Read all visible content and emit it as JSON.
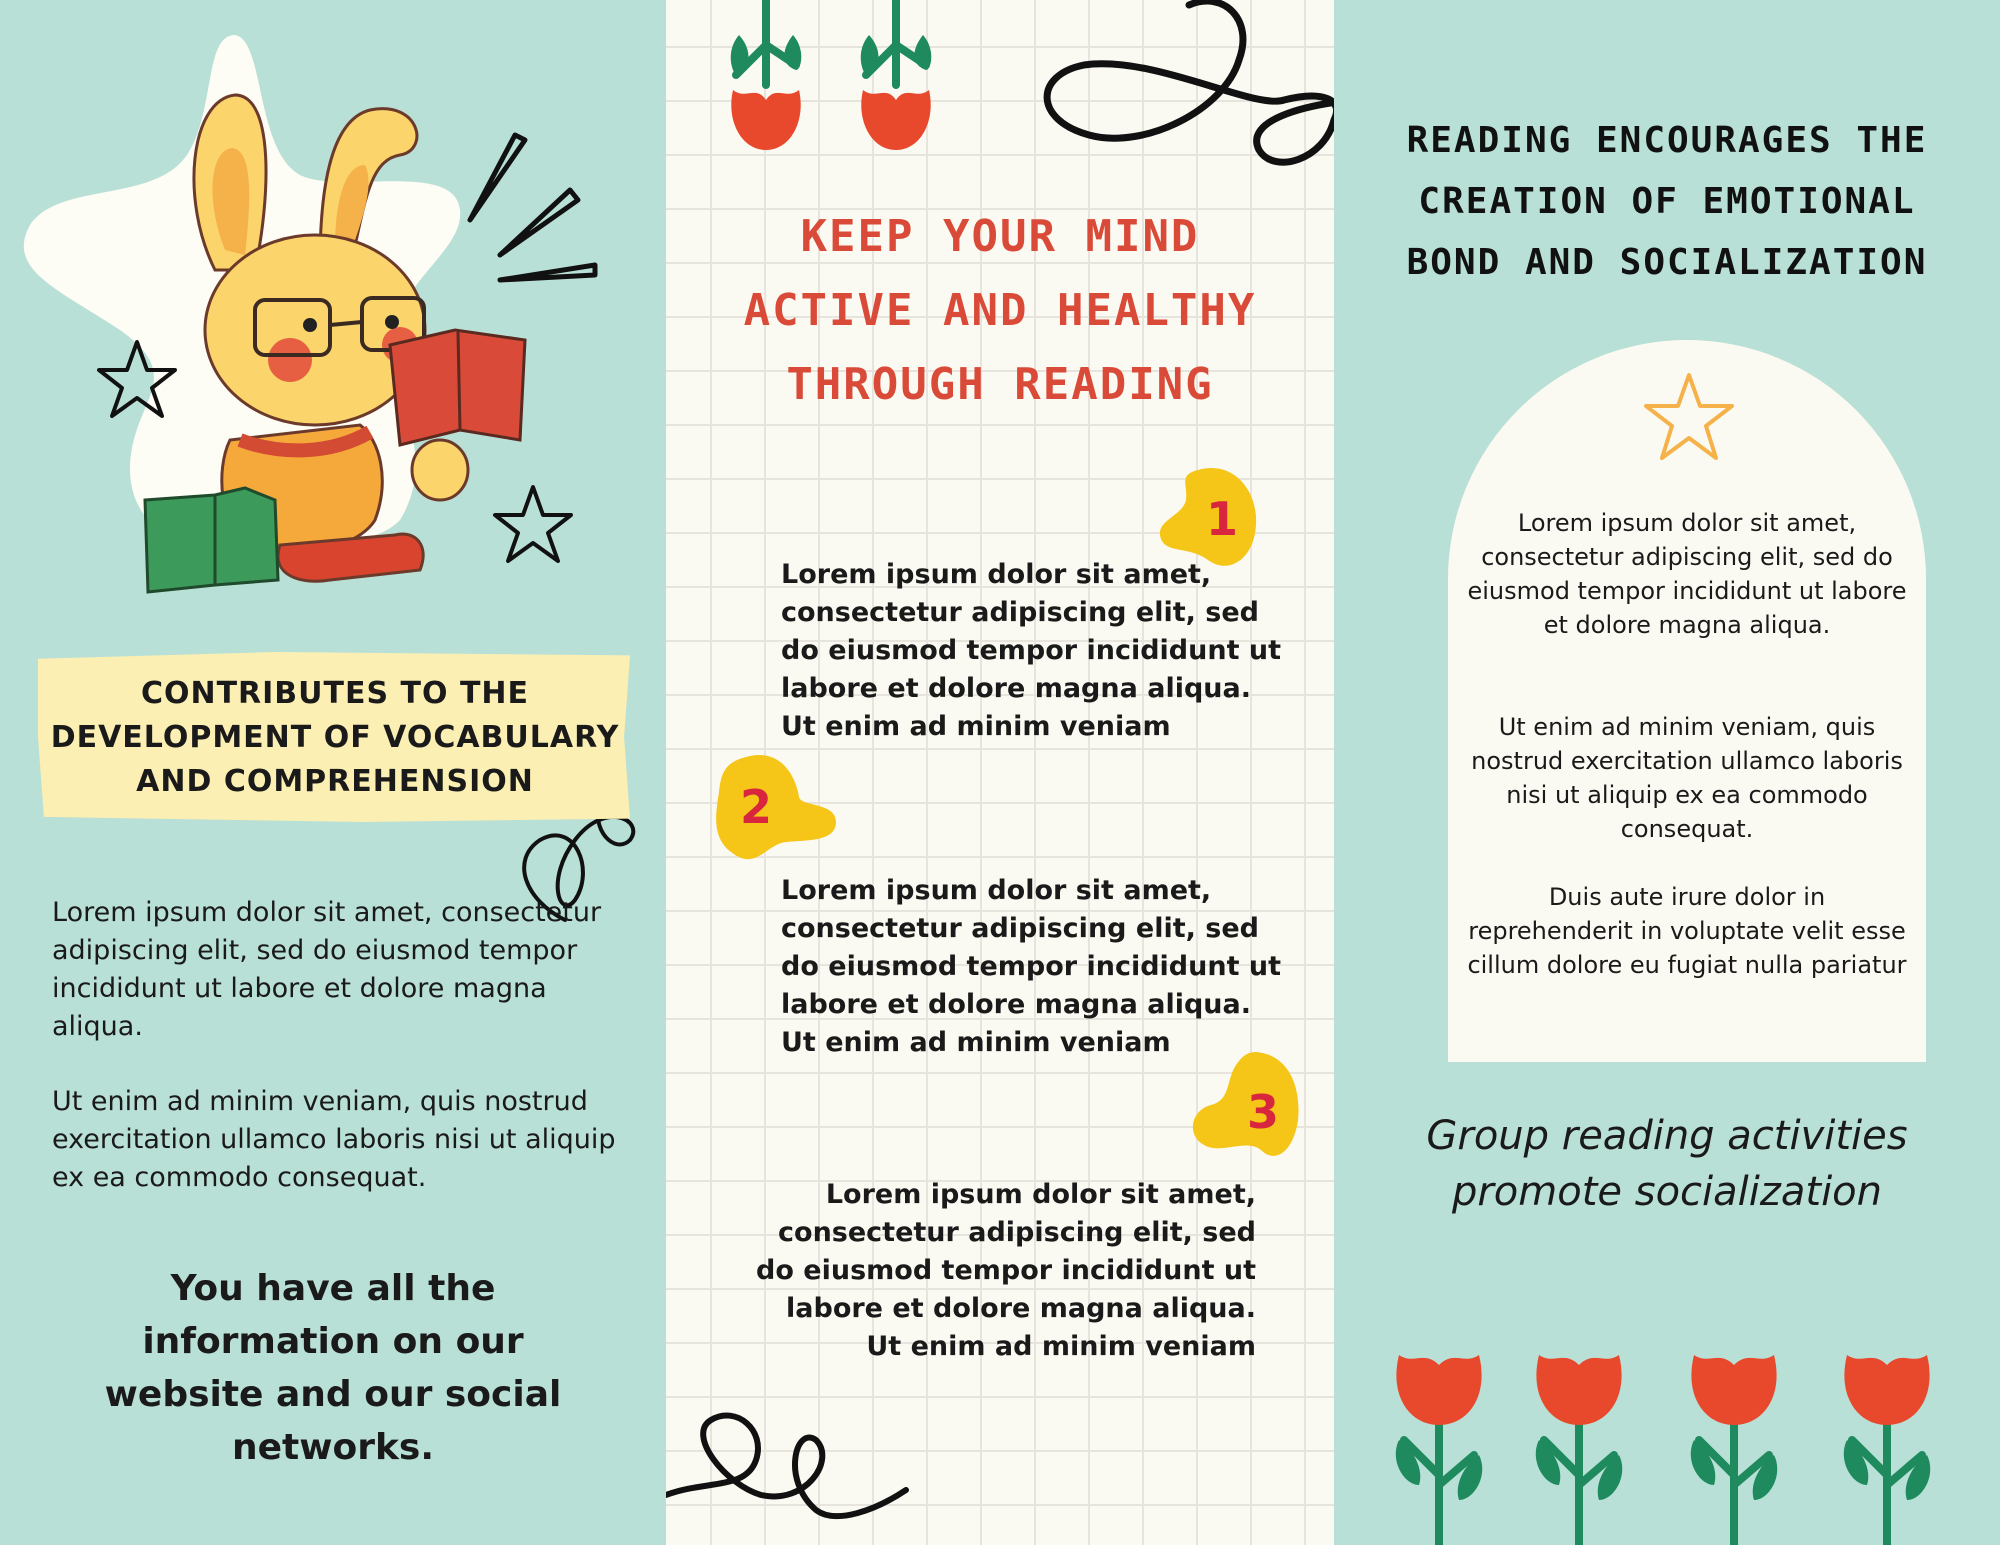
{
  "left_panel": {
    "heading": "CONTRIBUTES TO THE DEVELOPMENT OF VOCABULARY AND COMPREHENSION",
    "paragraph_1": "Lorem ipsum dolor sit amet, consectetur adipiscing elit, sed do eiusmod tempor incididunt ut labore et dolore magna aliqua.",
    "paragraph_2": "Ut enim ad minim veniam, quis nostrud exercitation ullamco laboris nisi ut aliquip ex ea commodo consequat.",
    "closing": "You have all the information on our website and our social networks.",
    "illustration_icon": "bunny-reading-books-illustration"
  },
  "middle_panel": {
    "title": "KEEP YOUR MIND ACTIVE AND HEALTHY THROUGH READING",
    "items": [
      {
        "number": "1",
        "text": "Lorem ipsum dolor sit amet, consectetur adipiscing elit, sed do eiusmod tempor incididunt ut labore et dolore magna aliqua. Ut enim ad minim veniam"
      },
      {
        "number": "2",
        "text": "Lorem ipsum dolor sit amet, consectetur adipiscing elit, sed do eiusmod tempor incididunt ut labore et dolore magna aliqua. Ut enim ad minim veniam"
      },
      {
        "number": "3",
        "text": "Lorem ipsum dolor sit amet, consectetur adipiscing elit, sed do eiusmod tempor incididunt ut labore et dolore magna aliqua. Ut enim ad minim veniam"
      }
    ]
  },
  "right_panel": {
    "title": "READING ENCOURAGES THE CREATION OF EMOTIONAL BOND AND SOCIALIZATION",
    "arch_paragraph_1": "Lorem ipsum dolor sit amet, consectetur adipiscing elit, sed do eiusmod tempor incididunt ut labore et dolore magna aliqua.",
    "arch_paragraph_2": "Ut enim ad minim veniam, quis nostrud exercitation ullamco laboris nisi ut aliquip ex ea commodo consequat.",
    "arch_paragraph_3": "Duis aute irure dolor in reprehenderit in voluptate velit esse cillum dolore eu fugiat nulla pariatur",
    "italic_caption": "Group reading activities promote socialization"
  },
  "colors": {
    "mint_background": "#b9e0d6",
    "cream": "#fbfaf2",
    "heading_red": "#d94b38",
    "number_blob_yellow": "#f5c518",
    "number_red": "#d7263d",
    "tulip_red": "#e8492d",
    "stem_green": "#1e8a5e",
    "highlight_yellow": "#fcefb4"
  }
}
